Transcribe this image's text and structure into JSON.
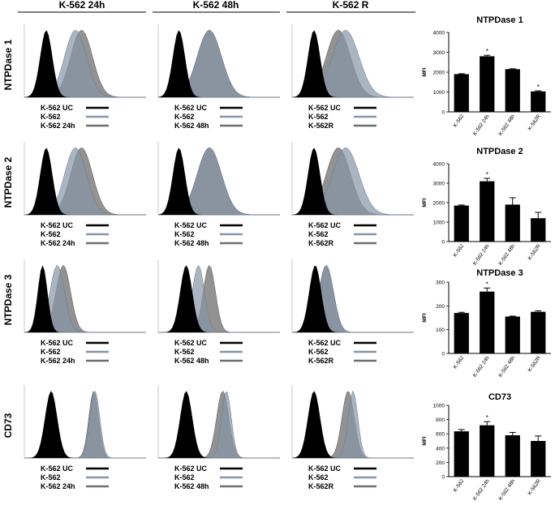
{
  "figure": {
    "columns": [
      "K-562 24h",
      "K-562 48h",
      "K-562 R"
    ],
    "rows": [
      "NTPDase 1",
      "NTPDase 2",
      "NTPDase 3",
      "CD73"
    ]
  },
  "legends": [
    [
      "K-562 UC",
      "K-562",
      "K-562 24h"
    ],
    [
      "K-562 UC",
      "K-562",
      "K-562 48h"
    ],
    [
      "K-562 UC",
      "K-562",
      "K-562R"
    ]
  ],
  "colors": {
    "uc": "#000000",
    "k562": "#8796a8",
    "treated": "#6e6e6e",
    "bar": "#000000"
  },
  "histograms": [
    [
      {
        "uc": [
          0.18,
          0.05
        ],
        "k562": [
          0.42,
          0.09
        ],
        "treated": [
          0.47,
          0.09
        ]
      },
      {
        "uc": [
          0.17,
          0.05
        ],
        "k562": [
          0.42,
          0.1
        ],
        "treated": [
          0.42,
          0.1
        ]
      },
      {
        "uc": [
          0.18,
          0.05
        ],
        "k562": [
          0.44,
          0.11
        ],
        "treated": [
          0.38,
          0.1
        ]
      }
    ],
    [
      {
        "uc": [
          0.18,
          0.05
        ],
        "k562": [
          0.42,
          0.09
        ],
        "treated": [
          0.47,
          0.09
        ]
      },
      {
        "uc": [
          0.17,
          0.05
        ],
        "k562": [
          0.42,
          0.1
        ],
        "treated": [
          0.42,
          0.1
        ]
      },
      {
        "uc": [
          0.18,
          0.05
        ],
        "k562": [
          0.44,
          0.11
        ],
        "treated": [
          0.38,
          0.1
        ]
      }
    ],
    [
      {
        "uc": [
          0.15,
          0.04
        ],
        "k562": [
          0.27,
          0.06
        ],
        "treated": [
          0.32,
          0.06
        ]
      },
      {
        "uc": [
          0.23,
          0.05
        ],
        "k562": [
          0.33,
          0.05
        ],
        "treated": [
          0.42,
          0.05
        ]
      },
      {
        "uc": [
          0.19,
          0.05
        ],
        "k562": [
          0.28,
          0.06
        ],
        "treated": [
          0.28,
          0.06
        ]
      }
    ],
    [
      {
        "uc": [
          0.22,
          0.05
        ],
        "k562": [
          0.58,
          0.04
        ],
        "treated": [
          0.57,
          0.04
        ]
      },
      {
        "uc": [
          0.23,
          0.05
        ],
        "k562": [
          0.56,
          0.04
        ],
        "treated": [
          0.53,
          0.05
        ]
      },
      {
        "uc": [
          0.18,
          0.05
        ],
        "k562": [
          0.5,
          0.04
        ],
        "treated": [
          0.46,
          0.05
        ]
      }
    ]
  ],
  "chart_data": [
    {
      "type": "bar",
      "title": "NTPDase 1",
      "ylabel": "MFI",
      "categories": [
        "K-562",
        "K-562 24h",
        "K-562 48h",
        "K-562R"
      ],
      "values": [
        1900,
        2800,
        2150,
        1030
      ],
      "errors": [
        20,
        50,
        20,
        30
      ],
      "significant": [
        false,
        true,
        false,
        true
      ],
      "ylim": [
        0,
        4000
      ],
      "yticks": [
        "0",
        "1000",
        "2000",
        "3000",
        "4000"
      ]
    },
    {
      "type": "bar",
      "title": "NTPDase 2",
      "ylabel": "MFI",
      "categories": [
        "K-562",
        "K-562 24h",
        "K-562 48h",
        "K-562R"
      ],
      "values": [
        1850,
        3100,
        1900,
        1200
      ],
      "errors": [
        30,
        150,
        350,
        300
      ],
      "significant": [
        false,
        true,
        false,
        false
      ],
      "ylim": [
        0,
        4000
      ],
      "yticks": [
        "0",
        "1000",
        "2000",
        "3000",
        "4000"
      ]
    },
    {
      "type": "bar",
      "title": "NTPDase 3",
      "ylabel": "MFI",
      "categories": [
        "K-562",
        "K-562 24h",
        "K-562 48h",
        "K-562R"
      ],
      "values": [
        170,
        260,
        155,
        175
      ],
      "errors": [
        3,
        15,
        2,
        4
      ],
      "significant": [
        false,
        true,
        false,
        false
      ],
      "ylim": [
        0,
        300
      ],
      "yticks": [
        "0",
        "100",
        "200",
        "300"
      ]
    },
    {
      "type": "bar",
      "title": "CD73",
      "ylabel": "MFI",
      "categories": [
        "K-562",
        "K-562 24h",
        "K-562 48h",
        "K-562R"
      ],
      "values": [
        635,
        720,
        580,
        500
      ],
      "errors": [
        25,
        50,
        40,
        70
      ],
      "significant": [
        false,
        true,
        false,
        false
      ],
      "ylim": [
        0,
        1000
      ],
      "yticks": [
        "0",
        "200",
        "400",
        "600",
        "800",
        "1000"
      ]
    }
  ]
}
